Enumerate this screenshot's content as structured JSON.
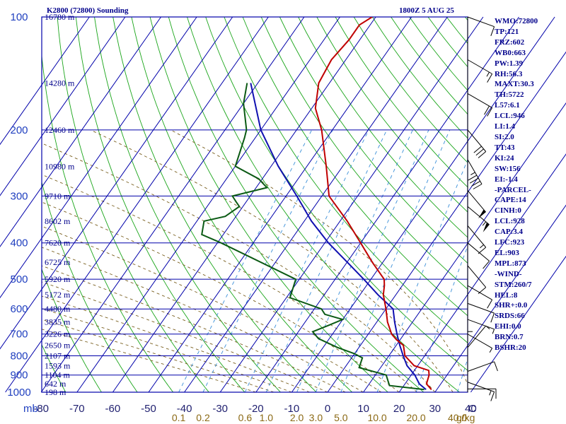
{
  "header": {
    "title": "K2800 (72800) Sounding",
    "timestamp": "1800Z  5 AUG 25"
  },
  "indices": [
    "WMO:72800",
    "TP:121",
    "FRZ:602",
    "WB0:663",
    "PW:1.39",
    "RH:56.3",
    "MAXT:30.3",
    "TH:5722",
    "L57:6.1",
    "LCL:946",
    "LI:1.4",
    "SI:2.0",
    "TT:43",
    "KI:24",
    "SW:156",
    "EI:-1.4",
    "-PARCEL-",
    "CAPE:14",
    "CINH:0",
    "LCL:928",
    "CAP:3.4",
    "LFC:923",
    "EL:903",
    "MPL:873",
    "-WIND-",
    "STM:260/7",
    "HEL:8",
    "SHR+:0.0",
    "SRDS:66",
    "EHI:0.0",
    "BRN:0.7",
    "BSHR:20"
  ],
  "colors": {
    "grid": "#0000aa",
    "dry_adiabats": "#1aa51a",
    "moist_adiabats": "#7a6020",
    "mixing_ratio": "#3a8fd8",
    "temperature": "#c00000",
    "dewpoint": "#0b5a14",
    "parcel": "#1010b0",
    "wind": "#000000"
  },
  "chart_data": {
    "type": "skew-t",
    "pressure_axis_unit": "mb",
    "pressure_ticks": [
      "100",
      "200",
      "300",
      "400",
      "500",
      "600",
      "700",
      "800",
      "900",
      "1000"
    ],
    "temperature_axis_unit": "C",
    "temperature_ticks": [
      "-80",
      "-70",
      "-60",
      "-50",
      "-40",
      "-30",
      "-20",
      "-10",
      "0",
      "10",
      "20",
      "30",
      "40"
    ],
    "mixing_ratio_unit": "g/kg",
    "mixing_ratio_ticks": [
      "0.1",
      "0.2",
      "0.6",
      "1.0",
      "2.0",
      "3.0",
      "5.0",
      "10.0",
      "20.0",
      "40.0"
    ],
    "mixing_ratio_values": [
      0.1,
      0.2,
      0.6,
      1.0,
      2.0,
      3.0,
      5.0,
      10.0,
      20.0,
      40.0
    ],
    "height_labels": [
      {
        "p": 100,
        "label": "16780 m"
      },
      {
        "p": 150,
        "label": "14280 m"
      },
      {
        "p": 200,
        "label": "12460 m"
      },
      {
        "p": 250,
        "label": "10980 m"
      },
      {
        "p": 300,
        "label": "9710 m"
      },
      {
        "p": 350,
        "label": "8602 m"
      },
      {
        "p": 400,
        "label": "7620 m"
      },
      {
        "p": 450,
        "label": "6725 m"
      },
      {
        "p": 500,
        "label": "5920 m"
      },
      {
        "p": 550,
        "label": "5172 m"
      },
      {
        "p": 600,
        "label": "4480 m"
      },
      {
        "p": 650,
        "label": "3835 m"
      },
      {
        "p": 700,
        "label": "3226 m"
      },
      {
        "p": 750,
        "label": "2650 m"
      },
      {
        "p": 800,
        "label": "2107 m"
      },
      {
        "p": 850,
        "label": "1593 m"
      },
      {
        "p": 900,
        "label": "1104 m"
      },
      {
        "p": 950,
        "label": "642 m"
      },
      {
        "p": 1000,
        "label": "198 m"
      }
    ],
    "temperature_profile": [
      [
        100,
        -61
      ],
      [
        105,
        -63
      ],
      [
        115,
        -63
      ],
      [
        130,
        -64
      ],
      [
        150,
        -63
      ],
      [
        175,
        -59
      ],
      [
        200,
        -53
      ],
      [
        250,
        -44.6
      ],
      [
        300,
        -38
      ],
      [
        350,
        -28
      ],
      [
        400,
        -20
      ],
      [
        450,
        -13
      ],
      [
        500,
        -6.3
      ],
      [
        520,
        -5
      ],
      [
        550,
        -3.5
      ],
      [
        600,
        0
      ],
      [
        650,
        3
      ],
      [
        700,
        6.5
      ],
      [
        725,
        9
      ],
      [
        750,
        12
      ],
      [
        800,
        14.5
      ],
      [
        850,
        19
      ],
      [
        875,
        24
      ],
      [
        900,
        25
      ],
      [
        950,
        26
      ],
      [
        984,
        28.5
      ]
    ],
    "dewpoint_profile": [
      [
        150,
        -83
      ],
      [
        170,
        -80
      ],
      [
        200,
        -74
      ],
      [
        210,
        -73
      ],
      [
        250,
        -70
      ],
      [
        270,
        -61
      ],
      [
        285,
        -57
      ],
      [
        300,
        -65
      ],
      [
        310,
        -63
      ],
      [
        320,
        -61
      ],
      [
        340,
        -63
      ],
      [
        350,
        -68
      ],
      [
        380,
        -66
      ],
      [
        400,
        -59
      ],
      [
        500,
        -31
      ],
      [
        560,
        -29
      ],
      [
        600,
        -18
      ],
      [
        620,
        -16
      ],
      [
        640,
        -10
      ],
      [
        665,
        -13
      ],
      [
        690,
        -16
      ],
      [
        720,
        -13
      ],
      [
        760,
        -6
      ],
      [
        790,
        0
      ],
      [
        810,
        3
      ],
      [
        860,
        4
      ],
      [
        900,
        13
      ],
      [
        960,
        16
      ],
      [
        984,
        26.5
      ]
    ],
    "parcel_profile": [
      [
        150,
        -82
      ],
      [
        200,
        -70
      ],
      [
        250,
        -58
      ],
      [
        300,
        -47
      ],
      [
        350,
        -38
      ],
      [
        400,
        -29
      ],
      [
        450,
        -20
      ],
      [
        500,
        -12
      ],
      [
        550,
        -5
      ],
      [
        600,
        2
      ],
      [
        650,
        5
      ],
      [
        700,
        8
      ],
      [
        750,
        11
      ],
      [
        800,
        14
      ],
      [
        850,
        17
      ],
      [
        900,
        21
      ],
      [
        950,
        24
      ],
      [
        984,
        27
      ]
    ],
    "wind_barbs": [
      {
        "p": 100,
        "dir": 290,
        "kt": 10
      },
      {
        "p": 130,
        "dir": 300,
        "kt": 15
      },
      {
        "p": 160,
        "dir": 300,
        "kt": 20
      },
      {
        "p": 200,
        "dir": 320,
        "kt": 30
      },
      {
        "p": 240,
        "dir": 330,
        "kt": 45
      },
      {
        "p": 290,
        "dir": 320,
        "kt": 50
      },
      {
        "p": 320,
        "dir": 310,
        "kt": 55
      },
      {
        "p": 360,
        "dir": 320,
        "kt": 15
      },
      {
        "p": 400,
        "dir": 310,
        "kt": 10
      },
      {
        "p": 460,
        "dir": 320,
        "kt": 10
      },
      {
        "p": 520,
        "dir": 300,
        "kt": 10
      },
      {
        "p": 580,
        "dir": 290,
        "kt": 10
      },
      {
        "p": 640,
        "dir": 290,
        "kt": 5
      },
      {
        "p": 700,
        "dir": 300,
        "kt": 5
      },
      {
        "p": 760,
        "dir": 220,
        "kt": 5
      },
      {
        "p": 820,
        "dir": 180,
        "kt": 5
      },
      {
        "p": 880,
        "dir": 250,
        "kt": 10
      },
      {
        "p": 940,
        "dir": 290,
        "kt": 15
      },
      {
        "p": 980,
        "dir": 270,
        "kt": 10
      }
    ]
  }
}
